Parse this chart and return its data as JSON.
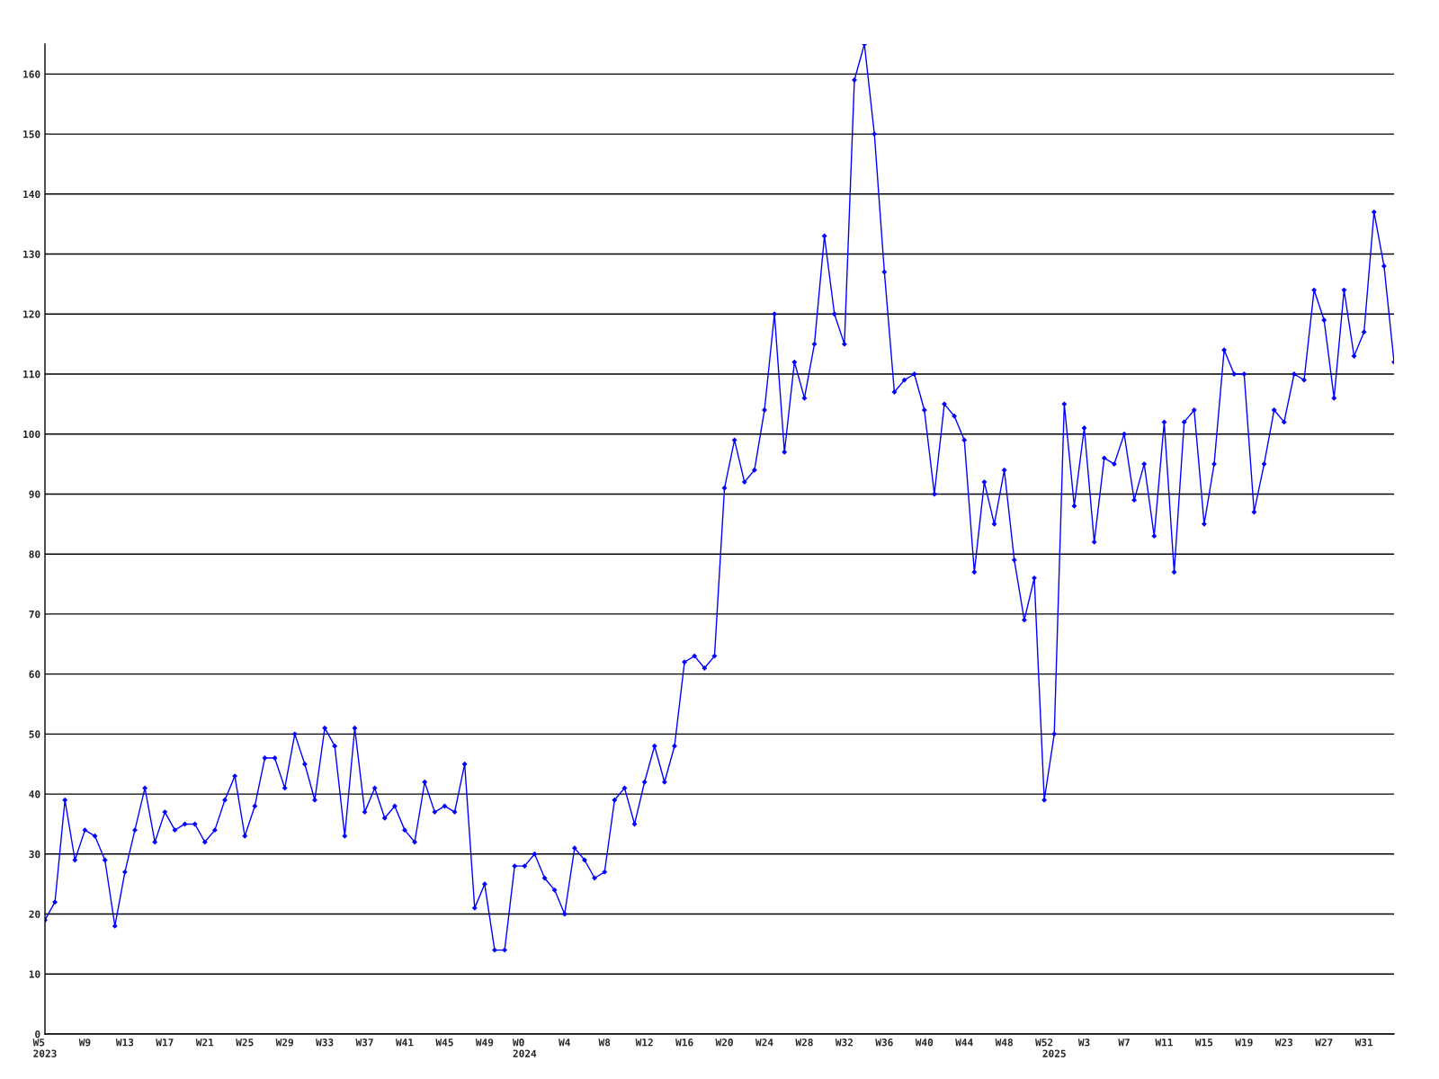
{
  "chart_data": {
    "type": "line",
    "categories": [
      "W5\n2023",
      null,
      null,
      null,
      "W9",
      null,
      null,
      null,
      "W13",
      null,
      null,
      null,
      "W17",
      null,
      null,
      null,
      "W21",
      null,
      null,
      null,
      "W25",
      null,
      null,
      null,
      "W29",
      null,
      null,
      null,
      "W33",
      null,
      null,
      null,
      "W37",
      null,
      null,
      null,
      "W41",
      null,
      null,
      null,
      "W45",
      null,
      null,
      null,
      "W49",
      null,
      null,
      null,
      "W0\n2024",
      null,
      null,
      null,
      "W4",
      null,
      null,
      null,
      "W8",
      null,
      null,
      null,
      "W12",
      null,
      null,
      null,
      "W16",
      null,
      null,
      null,
      "W20",
      null,
      null,
      null,
      "W24",
      null,
      null,
      null,
      "W28",
      null,
      null,
      null,
      "W32",
      null,
      null,
      null,
      "W36",
      null,
      null,
      null,
      "W40",
      null,
      null,
      null,
      "W44",
      null,
      null,
      null,
      "W48",
      null,
      null,
      null,
      "W52",
      "\n2025",
      null,
      null,
      "W3",
      null,
      null,
      null,
      "W7",
      null,
      null,
      null,
      "W11",
      null,
      null,
      null,
      "W15",
      null,
      null,
      null,
      "W19",
      null,
      null,
      null,
      "W23",
      null,
      null,
      null,
      "W27",
      null,
      null,
      null,
      "W31",
      null,
      null,
      null
    ],
    "series": [
      {
        "color": "#0000ff",
        "values": [
          19,
          22,
          39,
          29,
          34,
          33,
          29,
          18,
          27,
          34,
          41,
          32,
          37,
          34,
          35,
          35,
          32,
          34,
          39,
          43,
          33,
          38,
          46,
          46,
          41,
          50,
          45,
          39,
          51,
          48,
          33,
          51,
          37,
          41,
          36,
          38,
          34,
          32,
          42,
          37,
          38,
          37,
          45,
          21,
          25,
          14,
          14,
          28,
          28,
          30,
          26,
          24,
          20,
          31,
          29,
          26,
          27,
          39,
          41,
          35,
          42,
          48,
          42,
          48,
          62,
          63,
          61,
          63,
          91,
          99,
          92,
          94,
          104,
          120,
          97,
          112,
          106,
          115,
          133,
          120,
          115,
          159,
          165,
          150,
          127,
          107,
          109,
          110,
          104,
          90,
          105,
          103,
          99,
          77,
          92,
          85,
          94,
          79,
          69,
          76,
          39,
          50,
          105,
          88,
          101,
          82,
          96,
          95,
          100,
          89,
          95,
          83,
          102,
          77,
          102,
          104,
          85,
          95,
          114,
          110,
          110,
          87,
          95,
          104,
          102,
          110,
          109,
          124,
          119,
          106,
          124,
          113,
          117,
          137,
          128,
          112
        ]
      }
    ],
    "ylim": [
      0,
      165
    ],
    "yticks": [
      0,
      10,
      20,
      30,
      40,
      50,
      60,
      70,
      80,
      90,
      100,
      110,
      120,
      130,
      140,
      150,
      160
    ],
    "grid": "y",
    "marker": "diamond",
    "line_style": "solid"
  }
}
